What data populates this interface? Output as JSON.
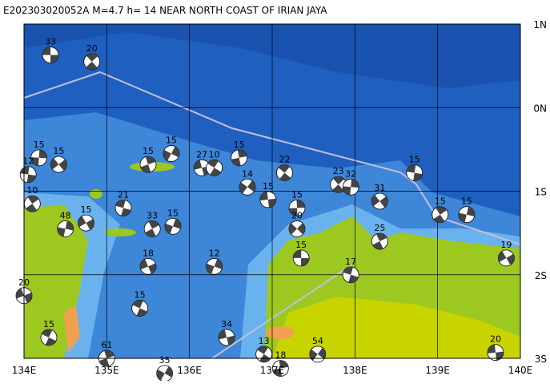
{
  "header": {
    "title": "E202303020052A M=4.7 h= 14 NEAR NORTH COAST OF IRIAN JAYA"
  },
  "lat_ticks": [
    {
      "value": 1,
      "label": "1N"
    },
    {
      "value": 0,
      "label": "0N"
    },
    {
      "value": -1,
      "label": "1S"
    },
    {
      "value": -2,
      "label": "2S"
    },
    {
      "value": -3,
      "label": "3S"
    }
  ],
  "lon_ticks": [
    {
      "value": 134,
      "label": "134E"
    },
    {
      "value": 135,
      "label": "135E"
    },
    {
      "value": 136,
      "label": "136E"
    },
    {
      "value": 137,
      "label": "137E"
    },
    {
      "value": 138,
      "label": "138E"
    },
    {
      "value": 139,
      "label": "139E"
    },
    {
      "value": 140,
      "label": "140E"
    }
  ],
  "events": [
    {
      "label": "33",
      "lon": 134.32,
      "lat": 0.63
    },
    {
      "label": "20",
      "lon": 134.82,
      "lat": 0.55
    },
    {
      "label": "15",
      "lon": 134.18,
      "lat": -0.6
    },
    {
      "label": "15",
      "lon": 134.42,
      "lat": -0.68
    },
    {
      "label": "12",
      "lon": 134.05,
      "lat": -0.8
    },
    {
      "label": "10",
      "lon": 134.1,
      "lat": -1.15
    },
    {
      "label": "48",
      "lon": 134.5,
      "lat": -1.45
    },
    {
      "label": "15",
      "lon": 134.75,
      "lat": -1.38
    },
    {
      "label": "21",
      "lon": 135.2,
      "lat": -1.2
    },
    {
      "label": "33",
      "lon": 135.55,
      "lat": -1.45
    },
    {
      "label": "15",
      "lon": 135.8,
      "lat": -1.42
    },
    {
      "label": "18",
      "lon": 135.5,
      "lat": -1.9
    },
    {
      "label": "15",
      "lon": 135.4,
      "lat": -2.4
    },
    {
      "label": "15",
      "lon": 135.5,
      "lat": -0.68
    },
    {
      "label": "15",
      "lon": 135.78,
      "lat": -0.55
    },
    {
      "label": "27",
      "lon": 136.15,
      "lat": -0.72
    },
    {
      "label": "10",
      "lon": 136.3,
      "lat": -0.72
    },
    {
      "label": "15",
      "lon": 136.6,
      "lat": -0.6
    },
    {
      "label": "14",
      "lon": 136.7,
      "lat": -0.95
    },
    {
      "label": "15",
      "lon": 136.95,
      "lat": -1.1
    },
    {
      "label": "22",
      "lon": 137.15,
      "lat": -0.78
    },
    {
      "label": "15",
      "lon": 137.3,
      "lat": -1.2
    },
    {
      "label": "20",
      "lon": 137.3,
      "lat": -1.45
    },
    {
      "label": "15",
      "lon": 137.35,
      "lat": -1.8
    },
    {
      "label": "23",
      "lon": 137.8,
      "lat": -0.92
    },
    {
      "label": "32",
      "lon": 137.95,
      "lat": -0.95
    },
    {
      "label": "31",
      "lon": 138.3,
      "lat": -1.12
    },
    {
      "label": "15",
      "lon": 138.72,
      "lat": -0.78
    },
    {
      "label": "15",
      "lon": 139.03,
      "lat": -1.28
    },
    {
      "label": "15",
      "lon": 139.35,
      "lat": -1.28
    },
    {
      "label": "19",
      "lon": 139.83,
      "lat": -1.8
    },
    {
      "label": "17",
      "lon": 137.95,
      "lat": -2.0
    },
    {
      "label": "25",
      "lon": 138.3,
      "lat": -1.6
    },
    {
      "label": "12",
      "lon": 136.3,
      "lat": -1.9
    },
    {
      "label": "20",
      "lon": 134.0,
      "lat": -2.25
    },
    {
      "label": "15",
      "lon": 134.3,
      "lat": -2.75
    },
    {
      "label": "61",
      "lon": 135.0,
      "lat": -3.0
    },
    {
      "label": "35",
      "lon": 135.7,
      "lat": -3.18
    },
    {
      "label": "34",
      "lon": 136.45,
      "lat": -2.75
    },
    {
      "label": "13",
      "lon": 136.9,
      "lat": -2.95
    },
    {
      "label": "18",
      "lon": 137.1,
      "lat": -3.12
    },
    {
      "label": "54",
      "lon": 137.55,
      "lat": -2.95
    },
    {
      "label": "20",
      "lon": 139.7,
      "lat": -2.93
    }
  ]
}
